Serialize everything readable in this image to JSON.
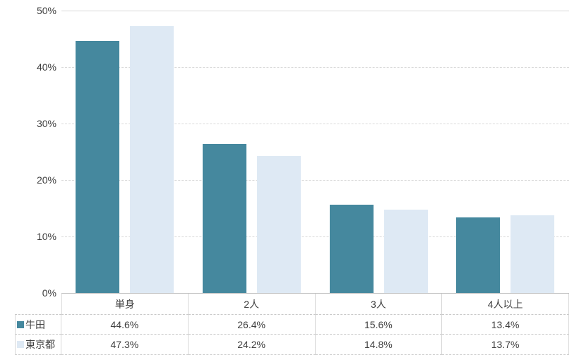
{
  "chart_data": {
    "type": "bar",
    "categories": [
      "単身",
      "2人",
      "3人",
      "4人以上"
    ],
    "series": [
      {
        "name": "牛田",
        "color": "#45889E",
        "values": [
          44.6,
          26.4,
          15.6,
          13.4
        ]
      },
      {
        "name": "東京都",
        "color": "#DEE9F4",
        "values": [
          47.3,
          24.2,
          14.8,
          13.7
        ]
      }
    ],
    "title": "",
    "xlabel": "",
    "ylabel": "",
    "ylim": [
      0,
      50
    ],
    "y_ticks": [
      "0%",
      "10%",
      "20%",
      "30%",
      "40%",
      "50%"
    ],
    "grid": "horizontal-dashed",
    "legend_position": "data-table-row-labels",
    "value_format": "percent_one_decimal"
  },
  "table": {
    "column_headers": [
      "単身",
      "2人",
      "3人",
      "4人以上"
    ],
    "row_labels": [
      "牛田",
      "東京都"
    ],
    "rows": [
      [
        "44.6%",
        "26.4%",
        "15.6%",
        "13.4%"
      ],
      [
        "47.3%",
        "24.2%",
        "14.8%",
        "13.7%"
      ]
    ]
  },
  "colors": {
    "series1": "#45889E",
    "series2": "#DEE9F4",
    "gridline": "#D9D9D9",
    "axis_line": "#BFBFBF",
    "table_border_vertical": "#D9D9D9",
    "table_border_horizontal": "#C9C9C9",
    "text": "#3F3F3F",
    "background": "#FFFFFF"
  }
}
